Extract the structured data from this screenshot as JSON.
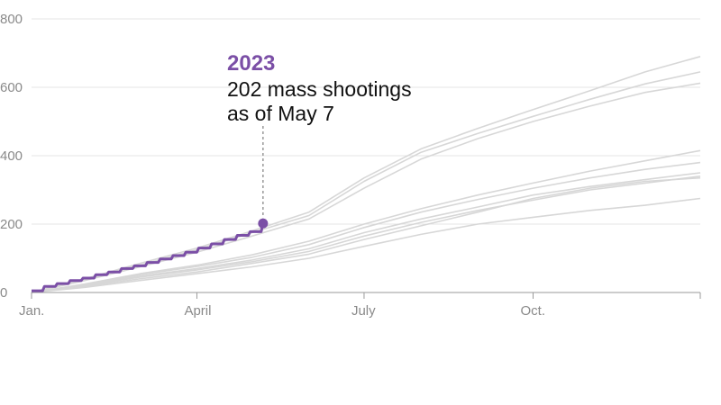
{
  "chart_data": {
    "type": "line",
    "title": "",
    "xlabel": "",
    "ylabel": "",
    "x_unit": "day of year",
    "xlim": [
      1,
      365
    ],
    "ylim": [
      0,
      800
    ],
    "y_ticks": [
      0,
      200,
      400,
      600,
      800
    ],
    "x_ticks": [
      {
        "label": "Jan.",
        "day": 1
      },
      {
        "label": "April",
        "day": 91
      },
      {
        "label": "July",
        "day": 182
      },
      {
        "label": "Oct.",
        "day": 274
      }
    ],
    "grid": true,
    "colors": {
      "highlight": "#7b4fa6",
      "past_years": "#d7d7d7",
      "grid": "#e6e6e6",
      "axis": "#9a9a9a"
    },
    "past_series": [
      {
        "x": [
          1,
          30,
          60,
          91,
          121,
          152,
          182,
          213,
          244,
          274,
          305,
          335,
          365
        ],
        "values": [
          0,
          40,
          85,
          130,
          180,
          235,
          335,
          420,
          480,
          535,
          590,
          645,
          690
        ]
      },
      {
        "x": [
          1,
          30,
          60,
          91,
          121,
          152,
          182,
          213,
          244,
          274,
          305,
          335,
          365
        ],
        "values": [
          0,
          38,
          80,
          125,
          175,
          225,
          325,
          410,
          465,
          515,
          565,
          610,
          645
        ]
      },
      {
        "x": [
          1,
          30,
          60,
          91,
          121,
          152,
          182,
          213,
          244,
          274,
          305,
          335,
          365
        ],
        "values": [
          0,
          35,
          75,
          118,
          165,
          215,
          305,
          390,
          450,
          500,
          545,
          585,
          612
        ]
      },
      {
        "x": [
          1,
          30,
          60,
          91,
          121,
          152,
          182,
          213,
          244,
          274,
          305,
          335,
          365
        ],
        "values": [
          0,
          25,
          55,
          80,
          110,
          150,
          200,
          245,
          285,
          320,
          355,
          385,
          415
        ]
      },
      {
        "x": [
          1,
          30,
          60,
          91,
          121,
          152,
          182,
          213,
          244,
          274,
          305,
          335,
          365
        ],
        "values": [
          0,
          24,
          52,
          76,
          103,
          140,
          190,
          235,
          272,
          305,
          335,
          360,
          380
        ]
      },
      {
        "x": [
          1,
          30,
          60,
          91,
          121,
          152,
          182,
          213,
          244,
          274,
          305,
          335,
          365
        ],
        "values": [
          0,
          22,
          48,
          70,
          95,
          128,
          175,
          215,
          250,
          285,
          310,
          330,
          350
        ]
      },
      {
        "x": [
          1,
          30,
          60,
          91,
          121,
          152,
          182,
          213,
          244,
          274,
          305,
          335,
          365
        ],
        "values": [
          0,
          20,
          45,
          66,
          90,
          120,
          165,
          205,
          240,
          270,
          300,
          320,
          340
        ]
      },
      {
        "x": [
          1,
          30,
          60,
          91,
          121,
          152,
          182,
          213,
          244,
          274,
          305,
          335,
          365
        ],
        "values": [
          0,
          18,
          40,
          60,
          85,
          112,
          155,
          195,
          235,
          275,
          305,
          325,
          335
        ]
      },
      {
        "x": [
          1,
          30,
          60,
          91,
          121,
          152,
          182,
          213,
          244,
          274,
          305,
          335,
          365
        ],
        "values": [
          0,
          15,
          35,
          55,
          75,
          100,
          135,
          170,
          200,
          220,
          240,
          255,
          275
        ]
      }
    ],
    "series": [
      {
        "name": "2023",
        "x": [
          1,
          8,
          15,
          22,
          29,
          36,
          43,
          50,
          57,
          64,
          71,
          78,
          85,
          92,
          99,
          106,
          113,
          120,
          127
        ],
        "values": [
          5,
          18,
          26,
          35,
          42,
          52,
          60,
          70,
          78,
          88,
          98,
          108,
          118,
          130,
          142,
          155,
          167,
          178,
          202
        ]
      }
    ],
    "annotation": {
      "year": "2023",
      "line1": "202 mass shootings",
      "line2": "as of May 7",
      "point_day": 127,
      "point_value": 202
    }
  }
}
